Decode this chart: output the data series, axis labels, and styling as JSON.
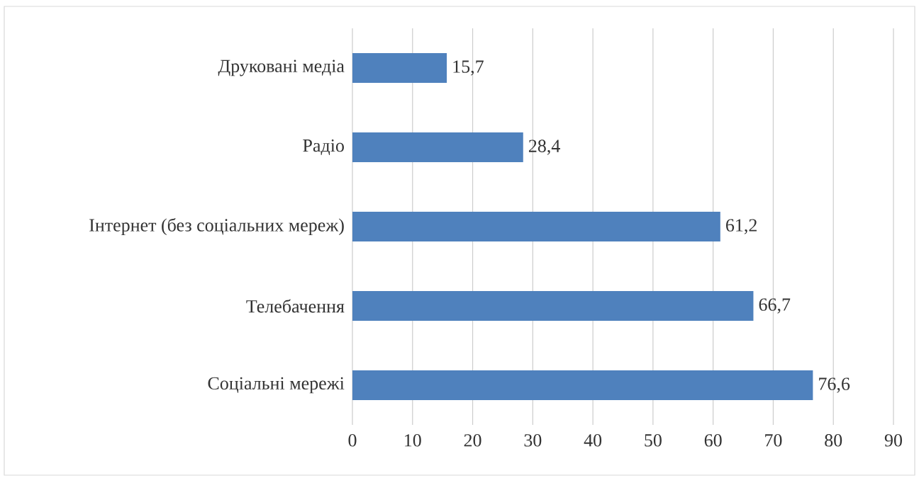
{
  "chart_data": {
    "type": "bar",
    "orientation": "horizontal",
    "categories": [
      "Друковані медіа",
      "Радіо",
      "Інтернет (без соціальних мереж)",
      "Телебачення",
      "Соціальні мережі"
    ],
    "values": [
      15.7,
      28.4,
      61.2,
      66.7,
      76.6
    ],
    "value_labels": [
      "15,7",
      "28,4",
      "61,2",
      "66,7",
      "76,6"
    ],
    "color": "#4f81bd",
    "xlim": [
      0,
      90
    ],
    "xticks": [
      0,
      10,
      20,
      30,
      40,
      50,
      60,
      70,
      80,
      90
    ],
    "grid": "x"
  }
}
